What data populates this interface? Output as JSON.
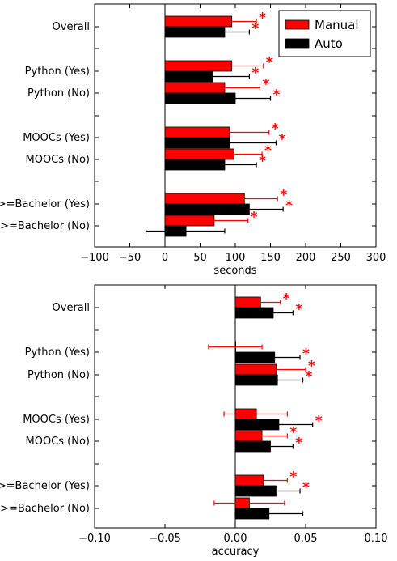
{
  "colors": {
    "manual": "#ff0000",
    "auto": "#000000",
    "manual_err": "#ff0000",
    "auto_err": "#000000",
    "star": "#ff0000"
  },
  "legend": {
    "placement": "top-right",
    "items": [
      {
        "label": "Manual"
      },
      {
        "label": "Auto"
      }
    ]
  },
  "chart_data": [
    {
      "type": "bar",
      "orientation": "horizontal",
      "xlabel": "seconds",
      "xlim": [
        -100,
        300
      ],
      "xticks": [
        "−100",
        "−50",
        "0",
        "50",
        "100",
        "150",
        "200",
        "250",
        "300"
      ],
      "xtick_values": [
        -100,
        -50,
        0,
        50,
        100,
        150,
        200,
        250,
        300
      ],
      "categories": [
        "Overall",
        "Python (Yes)",
        "Python (No)",
        "MOOCs (Yes)",
        "MOOCs (No)",
        ">=Bachelor (Yes)",
        ">=Bachelor (No)"
      ],
      "series": [
        {
          "name": "Manual",
          "values": [
            95,
            95,
            85,
            92,
            98,
            113,
            70
          ],
          "err_low": [
            60,
            55,
            35,
            35,
            55,
            68,
            22
          ],
          "err_high": [
            130,
            140,
            135,
            148,
            138,
            160,
            118
          ]
        },
        {
          "name": "Auto",
          "values": [
            85,
            68,
            100,
            92,
            85,
            120,
            30
          ],
          "err_low": [
            48,
            15,
            48,
            30,
            40,
            75,
            -27
          ],
          "err_high": [
            120,
            120,
            150,
            158,
            130,
            168,
            85
          ]
        }
      ],
      "significance_marker": "*",
      "significant": {
        "Manual": [
          true,
          true,
          true,
          true,
          true,
          true,
          true
        ],
        "Auto": [
          true,
          true,
          true,
          true,
          true,
          true,
          false
        ]
      }
    },
    {
      "type": "bar",
      "orientation": "horizontal",
      "xlabel": "accuracy",
      "xlim": [
        -0.1,
        0.1
      ],
      "xticks": [
        "−0.10",
        "−0.05",
        "0.00",
        "0.05",
        "0.10"
      ],
      "xtick_values": [
        -0.1,
        -0.05,
        0,
        0.05,
        0.1
      ],
      "categories": [
        "Overall",
        "Python (Yes)",
        "Python (No)",
        "MOOCs (Yes)",
        "MOOCs (No)",
        ">=Bachelor (Yes)",
        ">=Bachelor (No)"
      ],
      "series": [
        {
          "name": "Manual",
          "values": [
            0.018,
            0.0,
            0.029,
            0.015,
            0.019,
            0.02,
            0.01
          ],
          "err_low": [
            0.003,
            -0.019,
            0.008,
            -0.008,
            0.001,
            0.003,
            -0.015
          ],
          "err_high": [
            0.032,
            0.019,
            0.05,
            0.037,
            0.037,
            0.037,
            0.035
          ]
        },
        {
          "name": "Auto",
          "values": [
            0.027,
            0.028,
            0.03,
            0.031,
            0.025,
            0.029,
            0.024
          ],
          "err_low": [
            0.013,
            0.009,
            0.01,
            0.007,
            0.008,
            0.012,
            0.0
          ],
          "err_high": [
            0.041,
            0.046,
            0.048,
            0.055,
            0.041,
            0.046,
            0.048
          ]
        }
      ],
      "significance_marker": "*",
      "significant": {
        "Manual": [
          true,
          false,
          true,
          false,
          true,
          true,
          false
        ],
        "Auto": [
          true,
          true,
          true,
          true,
          true,
          true,
          false
        ]
      }
    }
  ]
}
